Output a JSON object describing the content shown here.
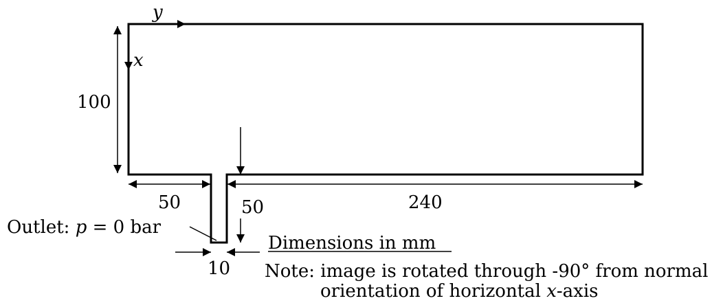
{
  "axes": {
    "y_label": "y",
    "x_label": "x"
  },
  "dimensions": {
    "height_left": "100",
    "width_left": "50",
    "width_right": "240",
    "outlet_depth": "50",
    "outlet_width": "10"
  },
  "outlet": {
    "prefix": "Outlet: ",
    "var": "p",
    "rest": " = 0 bar"
  },
  "units_note": "Dimensions in mm",
  "note": {
    "prefix": "Note: ",
    "line1": "image is rotated through -90° from normal",
    "line2_pre": "orientation of horizontal ",
    "line2_var": "x",
    "line2_post": "-axis"
  }
}
